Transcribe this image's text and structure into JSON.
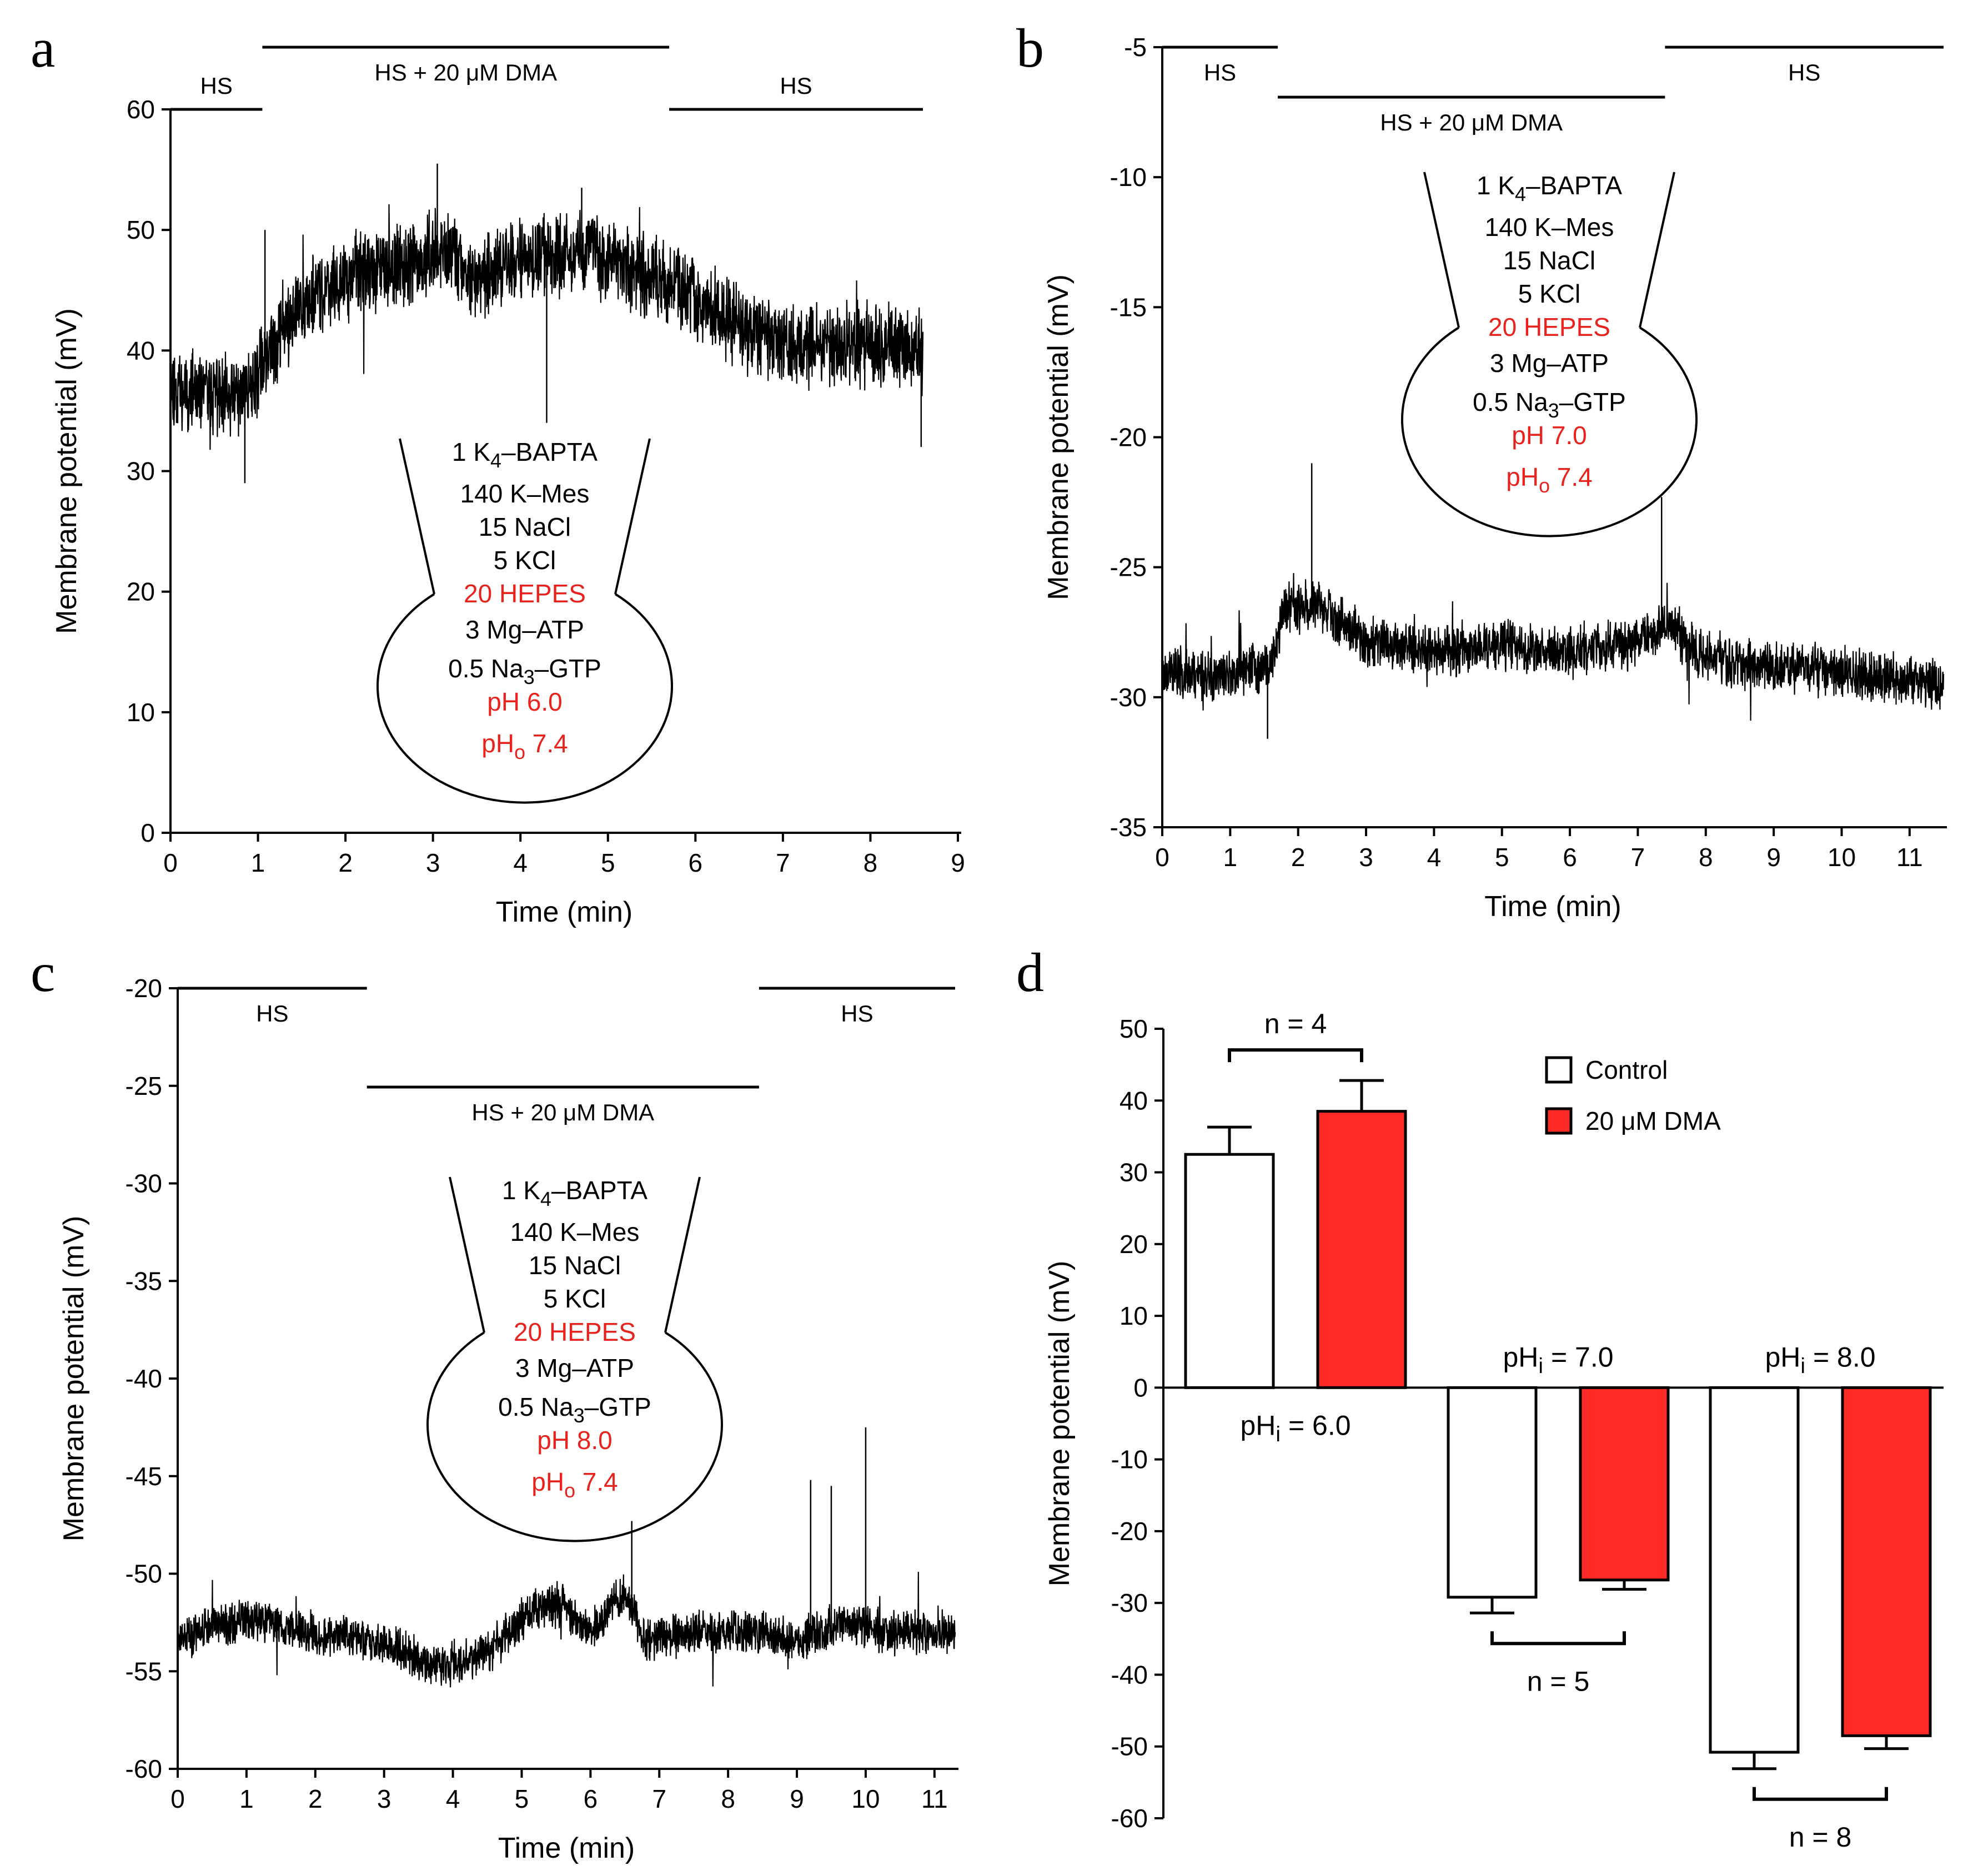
{
  "colors": {
    "dma": "#ff2a26",
    "control": "#ffffff",
    "trace": "#000000",
    "highlight_text": "#e8231d"
  },
  "solution_common": [
    "1 K4–BAPTA",
    "140 K–Mes",
    "15 NaCl",
    "5 KCl",
    "20 HEPES",
    "3 Mg–ATP",
    "0.5 Na3–GTP"
  ],
  "sub_chars": {
    "k4": "4",
    "na3": "3",
    "ph_o": "o",
    "ph_i": "i"
  },
  "chart_data": [
    {
      "panel": "a",
      "type": "line",
      "xlabel": "Time (min)",
      "ylabel": "Membrane potential (mV)",
      "xlim": [
        0,
        9
      ],
      "ylim": [
        0,
        60
      ],
      "xticks": [
        0,
        1,
        2,
        3,
        4,
        5,
        6,
        7,
        8,
        9
      ],
      "yticks": [
        0,
        10,
        20,
        30,
        40,
        50,
        60
      ],
      "conditions": [
        {
          "label": "HS",
          "start": 0,
          "end": 1.05
        },
        {
          "label": "HS + 20 μM DMA",
          "start": 1.05,
          "end": 5.7
        },
        {
          "label": "HS",
          "start": 5.7,
          "end": 8.6
        }
      ],
      "solution": {
        "ph": "pH 6.0",
        "pho": "pHo 7.4"
      },
      "trace": {
        "duration": 8.6,
        "seed": 11,
        "noise": 2.6,
        "knots": [
          [
            0,
            37
          ],
          [
            0.5,
            36.5
          ],
          [
            0.8,
            36
          ],
          [
            1.0,
            38
          ],
          [
            1.3,
            42
          ],
          [
            1.7,
            45
          ],
          [
            2.2,
            46.5
          ],
          [
            2.7,
            47
          ],
          [
            3.1,
            48.5
          ],
          [
            3.5,
            46
          ],
          [
            3.9,
            47.5
          ],
          [
            4.4,
            48
          ],
          [
            4.8,
            48.5
          ],
          [
            5.2,
            47
          ],
          [
            5.7,
            45.5
          ],
          [
            6.2,
            43.5
          ],
          [
            6.6,
            41.5
          ],
          [
            7.2,
            40.5
          ],
          [
            8.0,
            40.5
          ],
          [
            8.6,
            40
          ]
        ],
        "spikes": [
          [
            0.85,
            29
          ],
          [
            1.08,
            50
          ],
          [
            3.05,
            55.5
          ],
          [
            4.3,
            34
          ],
          [
            4.7,
            53.5
          ],
          [
            8.58,
            32
          ]
        ]
      }
    },
    {
      "panel": "b",
      "type": "line",
      "xlabel": "Time (min)",
      "ylabel": "Membrane potential (mV)",
      "xlim": [
        0,
        11.5
      ],
      "ylim": [
        -35,
        -5
      ],
      "xticks": [
        0,
        1,
        2,
        3,
        4,
        5,
        6,
        7,
        8,
        9,
        10,
        11
      ],
      "yticks": [
        -35,
        -30,
        -25,
        -20,
        -15,
        -10,
        -5
      ],
      "conditions": [
        {
          "label": "HS",
          "start": 0,
          "end": 1.7
        },
        {
          "label": "HS + 20 μM DMA",
          "start": 1.7,
          "end": 7.4
        },
        {
          "label": "HS",
          "start": 7.4,
          "end": 11.5
        }
      ],
      "solution": {
        "ph": "pH 7.0",
        "pho": "pHo 7.4"
      },
      "trace": {
        "duration": 11.5,
        "seed": 23,
        "noise": 0.75,
        "knots": [
          [
            0,
            -29
          ],
          [
            0.8,
            -29.2
          ],
          [
            1.6,
            -28.8
          ],
          [
            1.8,
            -26.5
          ],
          [
            2.3,
            -26.5
          ],
          [
            3.0,
            -27.8
          ],
          [
            4.0,
            -28.2
          ],
          [
            5.0,
            -28
          ],
          [
            6.0,
            -28.3
          ],
          [
            7.0,
            -27.8
          ],
          [
            7.5,
            -27.2
          ],
          [
            7.9,
            -28.3
          ],
          [
            8.5,
            -28.7
          ],
          [
            10.0,
            -29
          ],
          [
            11.5,
            -29.5
          ]
        ],
        "spikes": [
          [
            2.2,
            -21
          ],
          [
            7.35,
            -22.3
          ],
          [
            1.55,
            -31.6
          ]
        ]
      }
    },
    {
      "panel": "c",
      "type": "line",
      "xlabel": "Time (min)",
      "ylabel": "Membrane potential (mV)",
      "xlim": [
        0,
        11.3
      ],
      "ylim": [
        -60,
        -20
      ],
      "xticks": [
        0,
        1,
        2,
        3,
        4,
        5,
        6,
        7,
        8,
        9,
        10,
        11
      ],
      "yticks": [
        -60,
        -55,
        -50,
        -45,
        -40,
        -35,
        -30,
        -25,
        -20
      ],
      "conditions": [
        {
          "label": "HS",
          "start": 0,
          "end": 2.75
        },
        {
          "label": "HS + 20 μM DMA",
          "start": 2.75,
          "end": 8.45
        },
        {
          "label": "HS",
          "start": 8.45,
          "end": 11.3
        }
      ],
      "solution": {
        "ph": "pH 8.0",
        "pho": "pHo 7.4"
      },
      "trace": {
        "duration": 11.3,
        "seed": 37,
        "noise": 0.85,
        "knots": [
          [
            0,
            -53.5
          ],
          [
            0.6,
            -52.5
          ],
          [
            1.2,
            -52.5
          ],
          [
            2.0,
            -53
          ],
          [
            3.0,
            -53.5
          ],
          [
            3.8,
            -54.8
          ],
          [
            4.5,
            -54
          ],
          [
            5.2,
            -51.8
          ],
          [
            5.6,
            -51.5
          ],
          [
            6.0,
            -53
          ],
          [
            6.5,
            -51
          ],
          [
            6.8,
            -53.5
          ],
          [
            7.5,
            -53
          ],
          [
            8.5,
            -53
          ],
          [
            9.0,
            -53.5
          ],
          [
            9.6,
            -52.5
          ],
          [
            10.3,
            -53
          ],
          [
            11.3,
            -53
          ]
        ],
        "spikes": [
          [
            9.2,
            -45.2
          ],
          [
            9.5,
            -45.5
          ],
          [
            10.0,
            -42.5
          ],
          [
            6.6,
            -47.3
          ]
        ]
      }
    },
    {
      "panel": "d",
      "type": "bar",
      "ylabel": "Membrane potential (mV)",
      "ylim": [
        -60,
        50
      ],
      "yticks": [
        -60,
        -50,
        -40,
        -30,
        -20,
        -10,
        0,
        10,
        20,
        30,
        40,
        50
      ],
      "groups": [
        "pHi = 6.0",
        "pHi = 7.0",
        "pHi = 8.0"
      ],
      "series": [
        {
          "name": "Control",
          "values": [
            32.5,
            -29.2,
            -50.8
          ],
          "errors": [
            3.8,
            2.2,
            2.3
          ]
        },
        {
          "name": "20 μM DMA",
          "values": [
            38.5,
            -26.8,
            -48.5
          ],
          "errors": [
            4.3,
            1.3,
            1.8
          ]
        }
      ],
      "n_labels": [
        "n = 4",
        "n = 5",
        "n = 8"
      ],
      "legend_position": "top-right"
    }
  ]
}
